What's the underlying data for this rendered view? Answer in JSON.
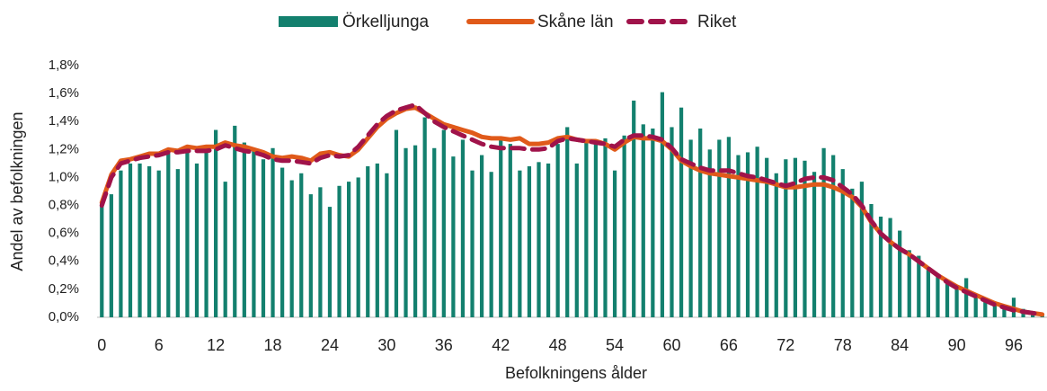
{
  "chart_data": {
    "type": "bar",
    "x_label": "Befolkningens ålder",
    "y_label": "Andel av befolkningen",
    "categories": [
      0,
      null,
      null,
      null,
      null,
      null,
      6,
      null,
      null,
      null,
      null,
      null,
      12,
      null,
      null,
      null,
      null,
      null,
      18,
      null,
      null,
      null,
      null,
      null,
      24,
      null,
      null,
      null,
      null,
      null,
      30,
      null,
      null,
      null,
      null,
      null,
      36,
      null,
      null,
      null,
      null,
      null,
      42,
      null,
      null,
      null,
      null,
      null,
      48,
      null,
      null,
      null,
      null,
      null,
      54,
      null,
      null,
      null,
      null,
      null,
      60,
      null,
      null,
      null,
      null,
      null,
      66,
      null,
      null,
      null,
      null,
      null,
      72,
      null,
      null,
      null,
      null,
      null,
      78,
      null,
      null,
      null,
      null,
      null,
      84,
      null,
      null,
      null,
      null,
      null,
      90,
      null,
      null,
      null,
      null,
      null,
      96,
      null,
      null,
      null
    ],
    "ylim": [
      0,
      1.8
    ],
    "yticks": [
      {
        "value": 0,
        "label": "0,0%"
      },
      {
        "value": 0.2,
        "label": "0,2%"
      },
      {
        "value": 0.4,
        "label": "0,4%"
      },
      {
        "value": 0.6,
        "label": "0,6%"
      },
      {
        "value": 0.8,
        "label": "0,8%"
      },
      {
        "value": 1.0,
        "label": "1,0%"
      },
      {
        "value": 1.2,
        "label": "1,2%"
      },
      {
        "value": 1.4,
        "label": "1,4%"
      },
      {
        "value": 1.6,
        "label": "1,6%"
      },
      {
        "value": 1.8,
        "label": "1,8%"
      }
    ],
    "grid": false,
    "legend": "top",
    "series": [
      {
        "name": "Örkelljunga",
        "type": "bar",
        "color": "#13806e",
        "values": [
          0.82,
          0.88,
          1.05,
          1.1,
          1.1,
          1.08,
          1.05,
          1.17,
          1.06,
          1.2,
          1.1,
          1.2,
          1.34,
          0.97,
          1.37,
          1.25,
          1.19,
          1.13,
          1.21,
          1.07,
          0.98,
          1.03,
          0.88,
          0.93,
          0.79,
          0.94,
          0.97,
          1.0,
          1.08,
          1.1,
          1.03,
          1.34,
          1.21,
          1.23,
          1.43,
          1.21,
          1.34,
          1.15,
          1.27,
          1.05,
          1.16,
          1.04,
          1.27,
          1.24,
          1.05,
          1.08,
          1.11,
          1.1,
          1.24,
          1.36,
          1.1,
          1.27,
          1.25,
          1.28,
          1.05,
          1.3,
          1.55,
          1.38,
          1.35,
          1.61,
          1.36,
          1.5,
          1.27,
          1.35,
          1.2,
          1.27,
          1.29,
          1.16,
          1.18,
          1.22,
          1.14,
          1.03,
          1.13,
          1.14,
          1.12,
          1.04,
          1.21,
          1.16,
          1.06,
          0.92,
          0.97,
          0.81,
          0.72,
          0.71,
          0.62,
          0.48,
          0.44,
          0.36,
          0.3,
          0.24,
          0.22,
          0.28,
          0.17,
          0.14,
          0.1,
          0.09,
          0.14,
          0.06,
          0.04,
          0.02
        ]
      },
      {
        "name": "Skåne län",
        "type": "line",
        "dashed": false,
        "color": "#e05a1a",
        "values": [
          0.82,
          1.02,
          1.12,
          1.13,
          1.15,
          1.17,
          1.17,
          1.2,
          1.19,
          1.22,
          1.21,
          1.22,
          1.22,
          1.25,
          1.23,
          1.22,
          1.2,
          1.18,
          1.15,
          1.14,
          1.15,
          1.14,
          1.12,
          1.17,
          1.18,
          1.16,
          1.15,
          1.2,
          1.28,
          1.36,
          1.42,
          1.46,
          1.49,
          1.5,
          1.46,
          1.42,
          1.38,
          1.36,
          1.34,
          1.32,
          1.29,
          1.28,
          1.28,
          1.27,
          1.28,
          1.24,
          1.24,
          1.25,
          1.28,
          1.29,
          1.27,
          1.26,
          1.26,
          1.24,
          1.2,
          1.25,
          1.29,
          1.28,
          1.28,
          1.26,
          1.2,
          1.12,
          1.08,
          1.05,
          1.03,
          1.02,
          1.01,
          1.0,
          0.99,
          0.98,
          0.97,
          0.95,
          0.93,
          0.93,
          0.94,
          0.95,
          0.95,
          0.93,
          0.9,
          0.86,
          0.79,
          0.68,
          0.6,
          0.54,
          0.49,
          0.45,
          0.4,
          0.35,
          0.3,
          0.26,
          0.22,
          0.19,
          0.16,
          0.13,
          0.1,
          0.08,
          0.06,
          0.04,
          0.03,
          0.02
        ]
      },
      {
        "name": "Riket",
        "type": "line",
        "dashed": true,
        "color": "#a0134a",
        "values": [
          0.8,
          1.0,
          1.1,
          1.12,
          1.14,
          1.15,
          1.16,
          1.18,
          1.18,
          1.19,
          1.19,
          1.19,
          1.2,
          1.23,
          1.21,
          1.19,
          1.18,
          1.16,
          1.13,
          1.12,
          1.12,
          1.11,
          1.1,
          1.14,
          1.16,
          1.15,
          1.16,
          1.22,
          1.3,
          1.38,
          1.44,
          1.48,
          1.5,
          1.52,
          1.46,
          1.4,
          1.36,
          1.33,
          1.3,
          1.27,
          1.24,
          1.22,
          1.21,
          1.21,
          1.21,
          1.2,
          1.2,
          1.21,
          1.26,
          1.28,
          1.27,
          1.26,
          1.25,
          1.24,
          1.22,
          1.27,
          1.3,
          1.3,
          1.29,
          1.27,
          1.21,
          1.13,
          1.1,
          1.07,
          1.05,
          1.05,
          1.05,
          1.03,
          1.01,
          1.0,
          0.98,
          0.96,
          0.94,
          0.96,
          0.99,
          1.0,
          1.0,
          0.98,
          0.93,
          0.88,
          0.8,
          0.69,
          0.6,
          0.54,
          0.49,
          0.45,
          0.4,
          0.35,
          0.3,
          0.25,
          0.21,
          0.18,
          0.15,
          0.12,
          0.09,
          0.07,
          0.05,
          0.04,
          0.03,
          0.02
        ]
      }
    ]
  }
}
